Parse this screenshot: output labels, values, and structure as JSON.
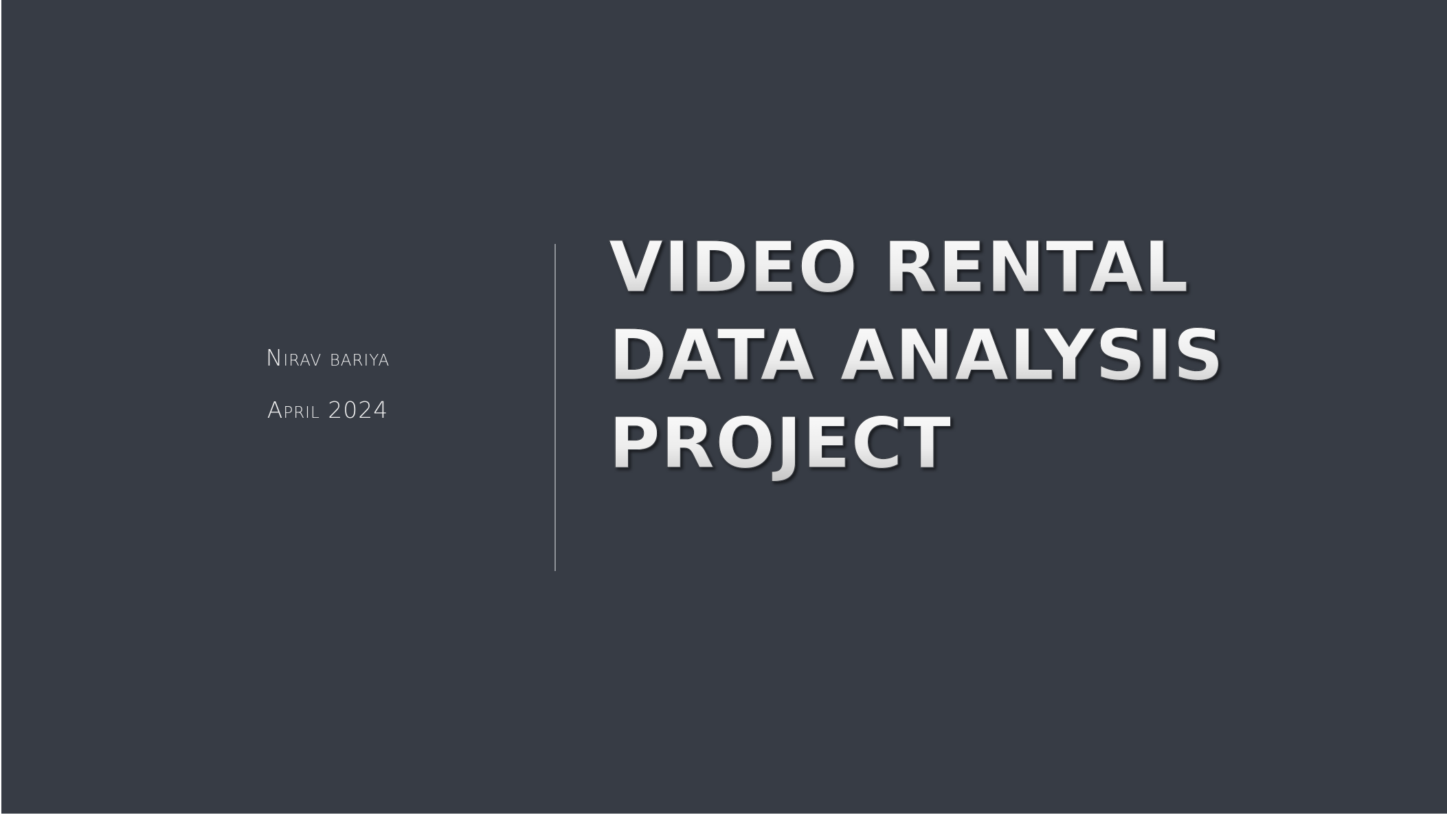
{
  "slide": {
    "title_lines": [
      "VIDEO RENTAL",
      "DATA ANALYSIS",
      "PROJECT"
    ],
    "author": "Nirav bariya",
    "date": "April 2024"
  },
  "colors": {
    "background": "#373c45",
    "divider": "#8f9399",
    "text": "#f2f2f2"
  }
}
